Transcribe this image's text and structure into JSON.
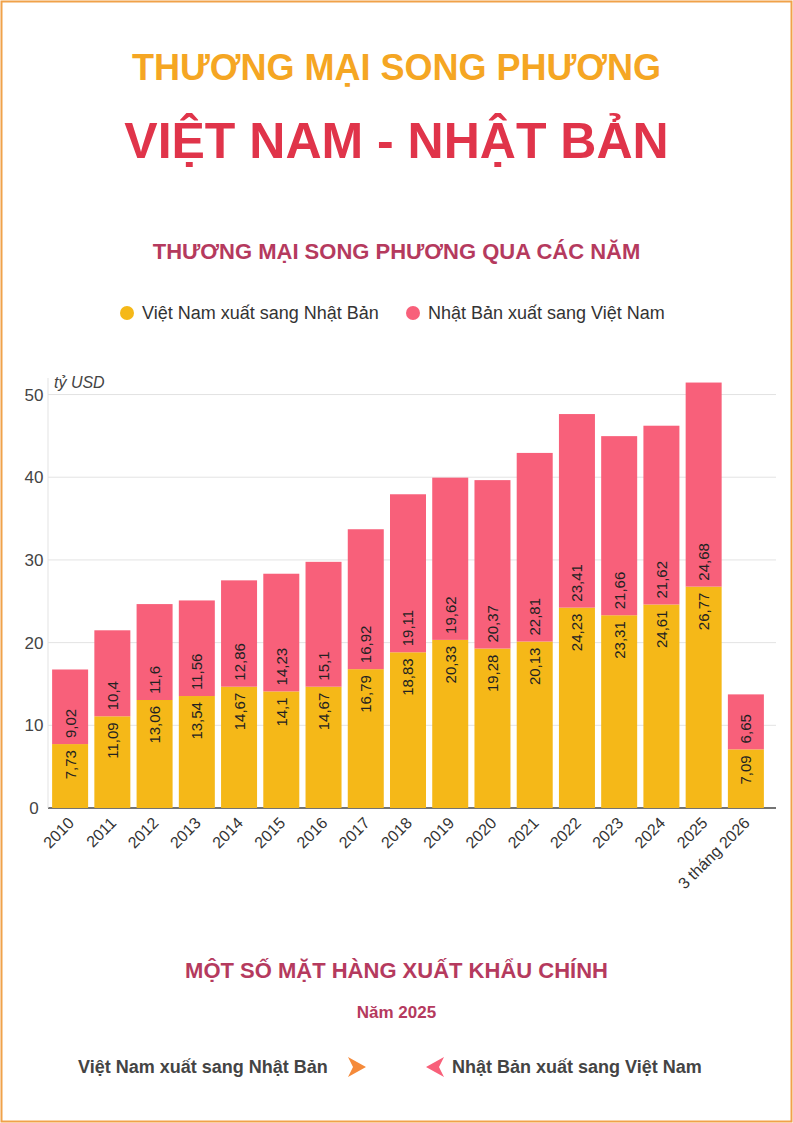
{
  "header": {
    "title": "THƯƠNG MẠI SONG PHƯƠNG",
    "subtitle": "VIỆT NAM - NHẬT BẢN"
  },
  "chart_data": {
    "type": "bar",
    "title": "THƯƠNG MẠI SONG PHƯƠNG QUA CÁC NĂM",
    "y_label": "tỷ USD",
    "categories": [
      "2010",
      "2011",
      "2012",
      "2013",
      "2014",
      "2015",
      "2016",
      "2017",
      "2018",
      "2019",
      "2020",
      "2021",
      "2022",
      "2023",
      "2024",
      "2025",
      "3 tháng 2026"
    ],
    "series": [
      {
        "name": "Việt Nam xuất sang Nhật Bản",
        "color": "#f5b818",
        "values": [
          7.73,
          11.09,
          13.06,
          13.54,
          14.67,
          14.1,
          14.67,
          16.79,
          18.83,
          20.33,
          19.28,
          20.13,
          24.23,
          23.31,
          24.61,
          26.77,
          7.09
        ],
        "value_labels": [
          "7,73",
          "11,09",
          "13,06",
          "13,54",
          "14,67",
          "14,1",
          "14,67",
          "16,79",
          "18,83",
          "20,33",
          "19,28",
          "20,13",
          "24,23",
          "23,31",
          "24,61",
          "26,77",
          "7,09"
        ]
      },
      {
        "name": "Nhật Bản xuất sang Việt Nam",
        "color": "#f8607a",
        "values": [
          9.02,
          10.4,
          11.6,
          11.56,
          12.86,
          14.23,
          15.1,
          16.92,
          19.11,
          19.62,
          20.37,
          22.81,
          23.41,
          21.66,
          21.62,
          24.68,
          6.65
        ],
        "value_labels": [
          "9,02",
          "10,4",
          "11,6",
          "11,56",
          "12,86",
          "14,23",
          "15,1",
          "16,92",
          "19,11",
          "19,62",
          "20,37",
          "22,81",
          "23,41",
          "21,66",
          "21,62",
          "24,68",
          "6,65"
        ]
      }
    ],
    "ylim": [
      0,
      52
    ],
    "yticks": [
      0,
      10,
      20,
      30,
      40,
      50
    ],
    "stacked": true,
    "grid": true,
    "data_labels": true,
    "legend": "top"
  },
  "footer": {
    "title": "MỘT SỐ MẶT HÀNG XUẤT KHẨU CHÍNH",
    "subtitle": "Năm 2025",
    "left": "Việt Nam xuất sang Nhật Bản",
    "right": "Nhật Bản xuất sang Việt Nam"
  }
}
